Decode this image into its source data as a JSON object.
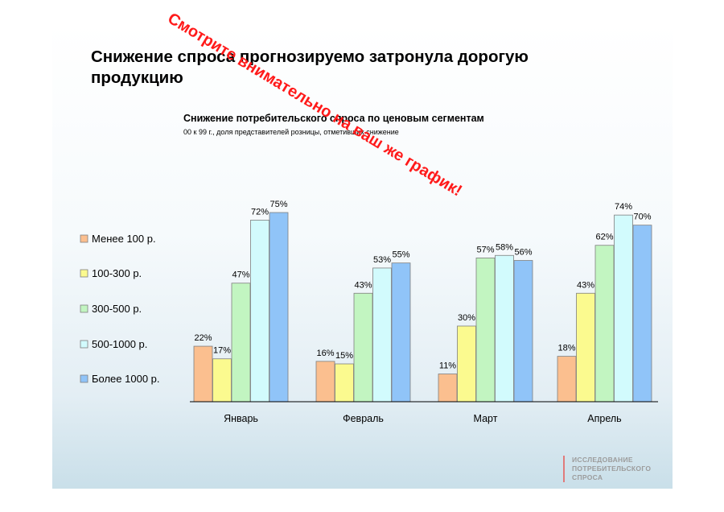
{
  "slide": {
    "title": "Снижение спроса прогнозируемо затронула дорогую продукцию",
    "stamp": "Смотрите внимательно на ваш же график!",
    "logo_lines": [
      "ИССЛЕДОВАНИЕ",
      "ПОТРЕБИТЕЛЬСКОГО",
      "СПРОСА"
    ]
  },
  "chart_data": {
    "type": "bar",
    "title": "Снижение потребительского спроса по ценовым сегментам",
    "subtitle": "00 к 99 г., доля представителей розницы, отметивших снижение",
    "categories": [
      "Январь",
      "Февраль",
      "Март",
      "Апрель"
    ],
    "ylim": [
      0,
      75
    ],
    "legend_position": "left",
    "grid": false,
    "value_labels": true,
    "series": [
      {
        "name": "Менее 100 р.",
        "color": "#fbbf8f",
        "values": [
          22,
          16,
          11,
          18
        ]
      },
      {
        "name": "100-300 р.",
        "color": "#fbfa8f",
        "values": [
          17,
          15,
          30,
          43
        ]
      },
      {
        "name": "300-500 р.",
        "color": "#c2f5c1",
        "values": [
          47,
          43,
          57,
          62
        ]
      },
      {
        "name": "500-1000 р.",
        "color": "#d2fbfd",
        "values": [
          72,
          53,
          58,
          74
        ]
      },
      {
        "name": "Более 1000 р.",
        "color": "#90c4f8",
        "values": [
          75,
          55,
          56,
          70
        ]
      }
    ]
  }
}
